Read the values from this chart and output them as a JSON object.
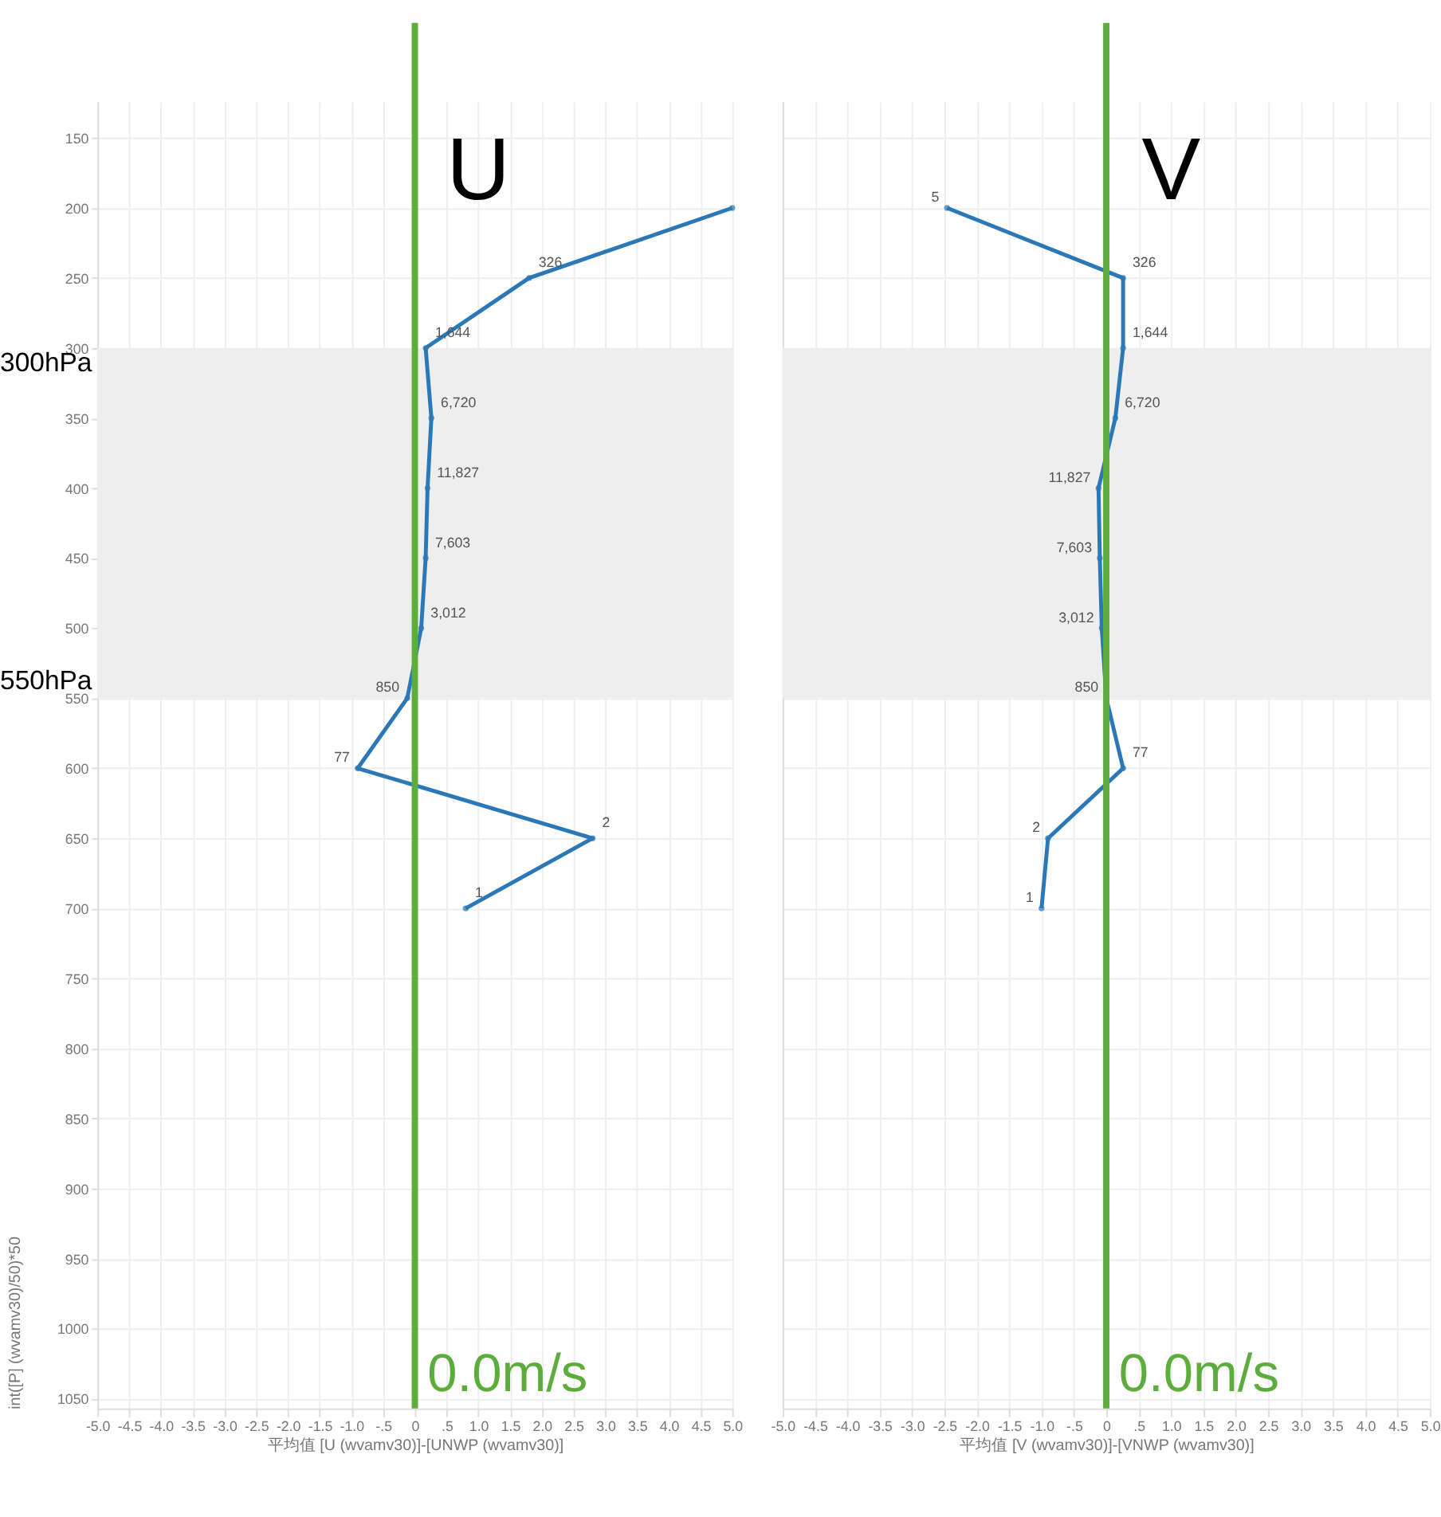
{
  "chart_data": [
    {
      "type": "line",
      "title": "U",
      "orientation": "horizontal",
      "xlabel": "平均值 [U (wvamv30)]-[UNWP (wvamv30)]",
      "ylabel": "int([P] (wvamv30)/50)*50",
      "x": [
        200,
        250,
        300,
        350,
        400,
        450,
        500,
        550,
        600,
        650,
        700
      ],
      "series": [
        {
          "color": "#2b78b8",
          "values": [
            5.0,
            1.8,
            0.17,
            0.26,
            0.2,
            0.17,
            0.1,
            -0.12,
            -0.9,
            2.8,
            0.8
          ]
        }
      ],
      "xlim": [
        -5,
        5
      ],
      "xticks": [
        {
          "value": -5,
          "label": "-5.0"
        },
        {
          "value": -4.5,
          "label": "-4.5"
        },
        {
          "value": -4,
          "label": "-4.0"
        },
        {
          "value": -3.5,
          "label": "-3.5"
        },
        {
          "value": -3,
          "label": "-3.0"
        },
        {
          "value": -2.5,
          "label": "-2.5"
        },
        {
          "value": -2,
          "label": "-2.0"
        },
        {
          "value": -1.5,
          "label": "-1.5"
        },
        {
          "value": -1,
          "label": "-1.0"
        },
        {
          "value": -0.5,
          "label": "-.5"
        },
        0,
        {
          "value": 0.5,
          "label": ".5"
        },
        {
          "value": 1,
          "label": "1.0"
        },
        {
          "value": 1.5,
          "label": "1.5"
        },
        {
          "value": 2,
          "label": "2.0"
        },
        {
          "value": 2.5,
          "label": "2.5"
        },
        {
          "value": 3,
          "label": "3.0"
        },
        {
          "value": 3.5,
          "label": "3.5"
        },
        {
          "value": 4,
          "label": "4.0"
        },
        {
          "value": 4.5,
          "label": "4.5"
        },
        {
          "value": 5,
          "label": "5.0"
        }
      ],
      "ylim": [
        1057,
        124
      ],
      "yticks": [
        150,
        200,
        250,
        300,
        350,
        400,
        450,
        500,
        550,
        600,
        650,
        700,
        750,
        800,
        850,
        900,
        950,
        1000,
        1050
      ],
      "grid": true,
      "marker": "circle",
      "bands": [
        {
          "axis": "y",
          "from": 300,
          "to": 550,
          "color": "#eeeeee"
        }
      ],
      "ref_lines": [
        {
          "axis": "x",
          "value": 0,
          "label": "0.0m/s",
          "color": "#5cad3c"
        }
      ],
      "annotations": [
        "300hPa",
        "550hPa",
        {
          "text": "326",
          "x": 1.8,
          "y": 250
        },
        {
          "text": "1,644",
          "x": 0.17,
          "y": 300
        },
        {
          "text": "6,720",
          "x": 0.26,
          "y": 350
        },
        {
          "text": "11,827",
          "x": 0.2,
          "y": 400
        },
        {
          "text": "7,603",
          "x": 0.17,
          "y": 450
        },
        {
          "text": "3,012",
          "x": 0.1,
          "y": 500
        },
        {
          "text": "850",
          "x": -0.12,
          "y": 550
        },
        {
          "text": "77",
          "x": -0.9,
          "y": 600
        },
        {
          "text": "2",
          "x": 2.8,
          "y": 650
        },
        {
          "text": "1",
          "x": 0.8,
          "y": 700
        }
      ]
    },
    {
      "type": "line",
      "title": "V",
      "orientation": "horizontal",
      "xlabel": "平均值 [V (wvamv30)]-[VNWP (wvamv30)]",
      "x": [
        200,
        250,
        300,
        350,
        400,
        450,
        500,
        550,
        600,
        650,
        700
      ],
      "series": [
        {
          "color": "#2b78b8",
          "values": [
            -2.46,
            0.26,
            0.26,
            0.14,
            -0.12,
            -0.1,
            -0.07,
            0.0,
            0.26,
            -0.9,
            -1.0
          ]
        }
      ],
      "xlim": [
        -5,
        5
      ],
      "xticks": [
        {
          "value": -5,
          "label": "-5.0"
        },
        {
          "value": -4.5,
          "label": "-4.5"
        },
        {
          "value": -4,
          "label": "-4.0"
        },
        {
          "value": -3.5,
          "label": "-3.5"
        },
        {
          "value": -3,
          "label": "-3.0"
        },
        {
          "value": -2.5,
          "label": "-2.5"
        },
        {
          "value": -2,
          "label": "-2.0"
        },
        {
          "value": -1.5,
          "label": "-1.5"
        },
        {
          "value": -1,
          "label": "-1.0"
        },
        {
          "value": -0.5,
          "label": "-.5"
        },
        0,
        {
          "value": 0.5,
          "label": ".5"
        },
        {
          "value": 1,
          "label": "1.0"
        },
        {
          "value": 1.5,
          "label": "1.5"
        },
        {
          "value": 2,
          "label": "2.0"
        },
        {
          "value": 2.5,
          "label": "2.5"
        },
        {
          "value": 3,
          "label": "3.0"
        },
        {
          "value": 3.5,
          "label": "3.5"
        },
        {
          "value": 4,
          "label": "4.0"
        },
        {
          "value": 4.5,
          "label": "4.5"
        },
        {
          "value": 5,
          "label": "5.0"
        }
      ],
      "ylim": [
        1057,
        124
      ],
      "yticks": [
        150,
        200,
        250,
        300,
        350,
        400,
        450,
        500,
        550,
        600,
        650,
        700,
        750,
        800,
        850,
        900,
        950,
        1000,
        1050
      ],
      "tick_labels": "x",
      "grid": true,
      "marker": "circle",
      "bands": [
        {
          "axis": "y",
          "from": 300,
          "to": 550,
          "color": "#eeeeee"
        }
      ],
      "ref_lines": [
        {
          "axis": "x",
          "value": 0,
          "label": "0.0m/s",
          "color": "#5cad3c"
        }
      ],
      "annotations": [
        {
          "text": "5",
          "x": -2.46,
          "y": 200
        },
        {
          "text": "326",
          "x": 0.26,
          "y": 250
        },
        {
          "text": "1,644",
          "x": 0.26,
          "y": 300
        },
        {
          "text": "6,720",
          "x": 0.14,
          "y": 350
        },
        {
          "text": "11,827",
          "x": -0.12,
          "y": 400
        },
        {
          "text": "7,603",
          "x": -0.1,
          "y": 450
        },
        {
          "text": "3,012",
          "x": -0.07,
          "y": 500
        },
        {
          "text": "850",
          "x": 0.0,
          "y": 550
        },
        {
          "text": "77",
          "x": 0.26,
          "y": 600
        },
        {
          "text": "2",
          "x": -0.9,
          "y": 650
        },
        {
          "text": "1",
          "x": -1.0,
          "y": 700
        }
      ]
    }
  ]
}
